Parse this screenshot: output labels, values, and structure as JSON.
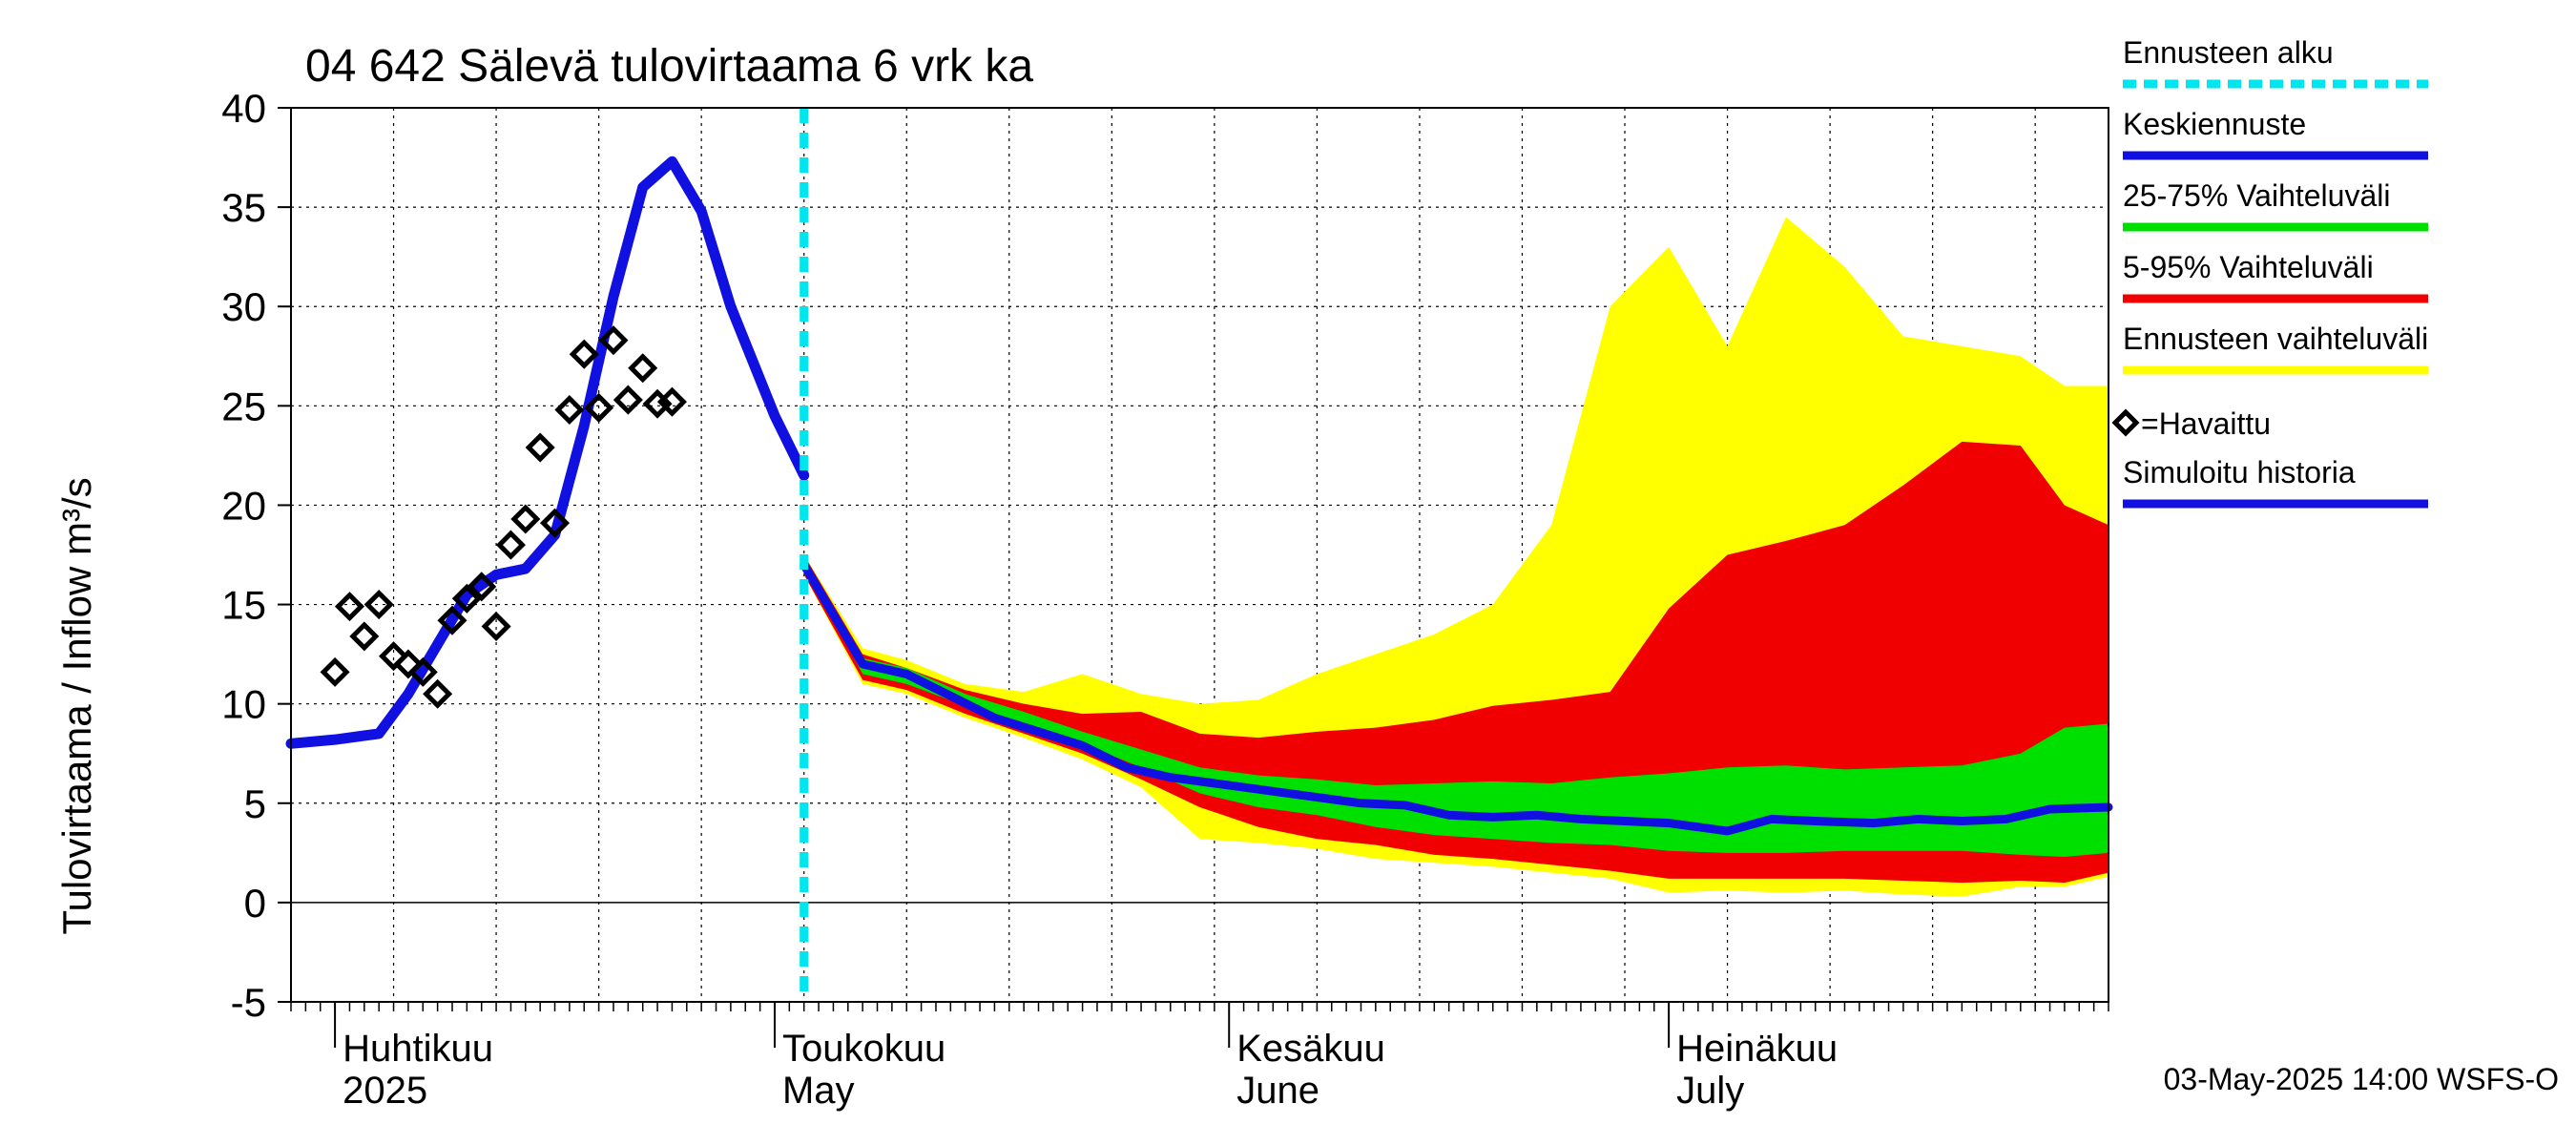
{
  "chart_data": {
    "type": "area",
    "title": "04 642 Sälevä tulovirtaama 6 vrk ka",
    "ylabel": "Tulovirtaama / Inflow    m³/s",
    "ylim": [
      -5,
      40
    ],
    "yticks": [
      -5,
      0,
      5,
      10,
      15,
      20,
      25,
      30,
      35,
      40
    ],
    "xlim": [
      "2025-03-29",
      "2025-07-31"
    ],
    "grid": true,
    "forecast_start": "2025-05-03",
    "month_labels": [
      {
        "date": "2025-04-01",
        "fi": "Huhtikuu",
        "en": "2025"
      },
      {
        "date": "2025-05-01",
        "fi": "Toukokuu",
        "en": "May"
      },
      {
        "date": "2025-06-01",
        "fi": "Kesäkuu",
        "en": "June"
      },
      {
        "date": "2025-07-01",
        "fi": "Heinäkuu",
        "en": "July"
      }
    ],
    "legend": [
      {
        "label": "Ennusteen alku",
        "kind": "dashed",
        "color": "#00e5ee"
      },
      {
        "label": "Keskiennuste",
        "kind": "line",
        "color": "#1010e0"
      },
      {
        "label": "25-75% Vaihteluväli",
        "kind": "line",
        "color": "#00e000"
      },
      {
        "label": "5-95% Vaihteluväli",
        "kind": "line",
        "color": "#f00000"
      },
      {
        "label": "Ennusteen vaihteluväli",
        "kind": "line",
        "color": "#ffff00"
      },
      {
        "label": "=Havaittu",
        "kind": "marker",
        "color": "#000000"
      },
      {
        "label": "Simuloitu historia",
        "kind": "line",
        "color": "#1010e0"
      }
    ],
    "colors": {
      "median": "#1010e0",
      "range_25_75": "#00e000",
      "range_5_95": "#f00000",
      "range_full": "#ffff00",
      "forecast_start": "#00e5ee",
      "observed": "#000000"
    },
    "band_x": [
      "2025-05-03",
      "2025-05-07",
      "2025-05-10",
      "2025-05-14",
      "2025-05-18",
      "2025-05-22",
      "2025-05-26",
      "2025-05-30",
      "2025-06-03",
      "2025-06-07",
      "2025-06-11",
      "2025-06-15",
      "2025-06-19",
      "2025-06-23",
      "2025-06-27",
      "2025-07-01",
      "2025-07-05",
      "2025-07-09",
      "2025-07-13",
      "2025-07-17",
      "2025-07-21",
      "2025-07-25",
      "2025-07-28",
      "2025-07-31"
    ],
    "full_range": {
      "upper": [
        17.5,
        12.8,
        12.2,
        11.0,
        10.6,
        11.5,
        10.5,
        10.0,
        10.2,
        11.5,
        12.5,
        13.5,
        15.0,
        19.0,
        30.0,
        33.0,
        28.0,
        34.5,
        32.0,
        28.5,
        28.0,
        27.5,
        26.0,
        26.0
      ],
      "lower": [
        16.5,
        11.0,
        10.5,
        9.3,
        8.3,
        7.2,
        5.8,
        3.2,
        3.0,
        2.7,
        2.2,
        2.0,
        1.8,
        1.5,
        1.2,
        0.5,
        0.6,
        0.5,
        0.6,
        0.4,
        0.3,
        0.8,
        0.8,
        1.3
      ]
    },
    "p5_95": {
      "upper": [
        17.5,
        12.5,
        11.8,
        10.7,
        10.0,
        9.5,
        9.6,
        8.5,
        8.3,
        8.6,
        8.8,
        9.2,
        9.9,
        10.2,
        10.6,
        14.8,
        17.5,
        18.2,
        19.0,
        21.0,
        23.2,
        23.0,
        20.0,
        19.0
      ],
      "lower": [
        16.5,
        11.2,
        10.7,
        9.5,
        8.5,
        7.5,
        6.2,
        4.8,
        3.8,
        3.2,
        2.9,
        2.4,
        2.2,
        1.9,
        1.6,
        1.2,
        1.2,
        1.2,
        1.2,
        1.1,
        1.0,
        1.1,
        1.0,
        1.5
      ]
    },
    "p25_75": {
      "upper": [
        17.3,
        12.3,
        11.8,
        10.5,
        9.6,
        8.6,
        7.7,
        6.8,
        6.4,
        6.2,
        5.9,
        6.0,
        6.1,
        6.0,
        6.3,
        6.5,
        6.8,
        6.9,
        6.7,
        6.8,
        6.9,
        7.5,
        8.8,
        9.0
      ],
      "lower": [
        17.0,
        11.5,
        11.0,
        9.9,
        9.0,
        8.0,
        6.8,
        5.5,
        4.8,
        4.4,
        3.8,
        3.4,
        3.2,
        3.0,
        2.9,
        2.6,
        2.5,
        2.5,
        2.6,
        2.6,
        2.6,
        2.4,
        2.3,
        2.5
      ]
    },
    "median": {
      "x": [
        "2025-05-03",
        "2025-05-07",
        "2025-05-10",
        "2025-05-13",
        "2025-05-16",
        "2025-05-19",
        "2025-05-22",
        "2025-05-25",
        "2025-05-28",
        "2025-05-31",
        "2025-06-03",
        "2025-06-07",
        "2025-06-10",
        "2025-06-13",
        "2025-06-16",
        "2025-06-19",
        "2025-06-22",
        "2025-06-25",
        "2025-06-28",
        "2025-07-01",
        "2025-07-05",
        "2025-07-08",
        "2025-07-11",
        "2025-07-15",
        "2025-07-18",
        "2025-07-21",
        "2025-07-24",
        "2025-07-27",
        "2025-07-31"
      ],
      "y": [
        17.0,
        12.0,
        11.5,
        10.4,
        9.3,
        8.6,
        7.9,
        6.8,
        6.3,
        6.0,
        5.7,
        5.3,
        5.0,
        4.9,
        4.4,
        4.3,
        4.4,
        4.2,
        4.1,
        4.0,
        3.6,
        4.2,
        4.1,
        4.0,
        4.2,
        4.1,
        4.2,
        4.7,
        4.8
      ]
    },
    "simulated_history": {
      "x": [
        "2025-03-29",
        "2025-04-01",
        "2025-04-04",
        "2025-04-06",
        "2025-04-08",
        "2025-04-10",
        "2025-04-12",
        "2025-04-14",
        "2025-04-16",
        "2025-04-18",
        "2025-04-20",
        "2025-04-22",
        "2025-04-24",
        "2025-04-26",
        "2025-04-28",
        "2025-05-01",
        "2025-05-03"
      ],
      "y": [
        8.0,
        8.2,
        8.5,
        10.5,
        13.0,
        15.5,
        16.5,
        16.8,
        18.5,
        24.0,
        30.5,
        36.0,
        37.3,
        34.8,
        30.0,
        24.5,
        21.5
      ]
    },
    "observed": {
      "x": [
        "2025-04-01",
        "2025-04-02",
        "2025-04-03",
        "2025-04-04",
        "2025-04-05",
        "2025-04-06",
        "2025-04-07",
        "2025-04-08",
        "2025-04-09",
        "2025-04-10",
        "2025-04-11",
        "2025-04-12",
        "2025-04-13",
        "2025-04-14",
        "2025-04-15",
        "2025-04-16",
        "2025-04-17",
        "2025-04-18",
        "2025-04-19",
        "2025-04-20",
        "2025-04-21",
        "2025-04-22",
        "2025-04-23",
        "2025-04-24"
      ],
      "y": [
        11.6,
        14.9,
        13.4,
        15.0,
        12.4,
        12.0,
        11.6,
        10.5,
        14.2,
        15.3,
        15.9,
        13.9,
        18.0,
        19.3,
        22.9,
        19.1,
        24.8,
        27.6,
        24.9,
        28.3,
        25.3,
        26.9,
        25.1,
        25.2
      ]
    },
    "footer": "03-May-2025 14:00 WSFS-O"
  }
}
